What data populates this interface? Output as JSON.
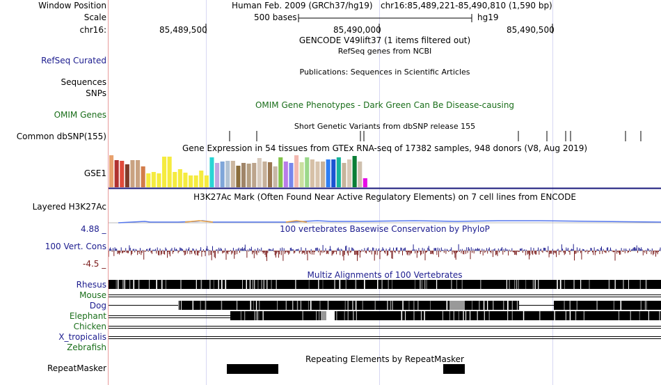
{
  "header": {
    "window_position_label": "Window Position",
    "assembly": "Human Feb. 2009 (GRCh37/hg19)",
    "position": "chr16:85,489,221-85,490,810 (1,590 bp)",
    "scale_label": "Scale",
    "scale_value": "500 bases",
    "scale_db": "hg19",
    "chrom_label": "chr16:",
    "ticks": [
      "85,489,500",
      "85,490,000",
      "85,490,500"
    ]
  },
  "tracks": {
    "gencode_title": "GENCODE V49lift37 (1 items filtered out)",
    "refseq_label": "RefSeq Curated",
    "refseq_title": "RefSeq genes from NCBI",
    "pubs_title": "Publications: Sequences in Scientific Articles",
    "sequences_label": "Sequences",
    "snps_label": "SNPs",
    "omim_label": "OMIM Genes",
    "omim_title": "OMIM Gene Phenotypes - Dark Green Can Be Disease-causing",
    "dbsnp_title": "Short Genetic Variants from dbSNP release 155",
    "dbsnp_label": "Common dbSNP(155)",
    "gtex_title": "Gene Expression in 54 tissues from GTEx RNA-seq of 17382 samples, 948 donors (V8, Aug 2019)",
    "gtex_gene": "GSE1",
    "h3k27ac_title": "H3K27Ac Mark (Often Found Near Active Regulatory Elements) on 7 cell lines from ENCODE",
    "h3k27ac_label": "Layered H3K27Ac",
    "cons_max": "4.88 _",
    "cons_title": "100 vertebrates Basewise Conservation by PhyloP",
    "cons_label": "100 Vert. Cons",
    "cons_min": "-4.5 _",
    "multiz_title": "Multiz Alignments of 100 Vertebrates",
    "species": [
      "Rhesus",
      "Mouse",
      "Dog",
      "Elephant",
      "Chicken",
      "X_tropicalis",
      "Zebrafish"
    ],
    "repeat_title": "Repeating Elements by RepeatMasker",
    "repeat_label": "RepeatMasker"
  },
  "colors": {
    "gtex_bars": [
      "#e8a16e",
      "#b0312f",
      "#e04b3b",
      "#7f3b2a",
      "#c9a281",
      "#c9a281",
      "#d27c4a",
      "#f5eb3f",
      "#f5eb3f",
      "#f5eb3f",
      "#f5eb3f",
      "#f5eb3f",
      "#f5eb3f",
      "#f5eb3f",
      "#f5eb3f",
      "#f5eb3f",
      "#f5eb3f",
      "#f5eb3f",
      "#f5eb3f",
      "#2ad5d5",
      "#bfa7e0",
      "#7fa6d9",
      "#b1c2d3",
      "#cbb69f",
      "#8a6d3b",
      "#a08568",
      "#b59f82",
      "#bca48c",
      "#d8cbbe",
      "#c6b09a",
      "#9a7651",
      "#c7b7a5",
      "#83c44c",
      "#b87ce8",
      "#7787ec",
      "#f3b8b0",
      "#cadfa0",
      "#9bd88a",
      "#d6c0a6",
      "#d8c4ad",
      "#c8b29a",
      "#2e7ef4",
      "#1a54d2",
      "#17b59a",
      "#c7b49b",
      "#d9c9b7",
      "#0a7e36",
      "#cfc0ae",
      "#e60ce6"
    ],
    "species_colors": [
      "#1b1b8e",
      "#1a6e1a",
      "#1b1b8e",
      "#1a6e1a",
      "#1a6e1a",
      "#1b1b8e",
      "#1a6e1a"
    ]
  },
  "chart_data": {
    "type": "bar",
    "title": "Gene Expression in 54 tissues from GTEx RNA-seq of 17382 samples, 948 donors (V8, Aug 2019)",
    "gene": "GSE1",
    "values": [
      46,
      39,
      38,
      33,
      39,
      39,
      30,
      20,
      22,
      20,
      44,
      44,
      22,
      26,
      21,
      17,
      17,
      24,
      17,
      43,
      35,
      37,
      38,
      38,
      31,
      35,
      34,
      35,
      42,
      37,
      36,
      30,
      43,
      37,
      35,
      46,
      36,
      43,
      40,
      37,
      37,
      40,
      40,
      43,
      35,
      40,
      45,
      37,
      13
    ]
  }
}
